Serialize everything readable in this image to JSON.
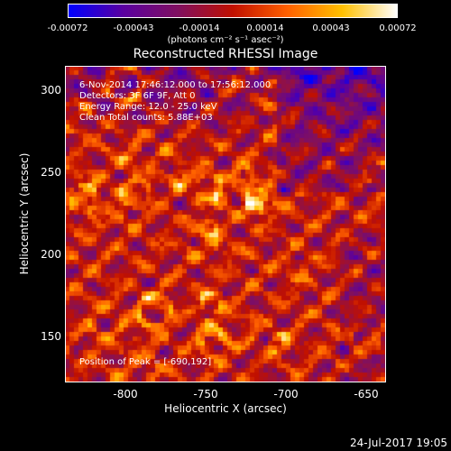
{
  "colorbar": {
    "ticks": [
      "-0.00072",
      "-0.00043",
      "-0.00014",
      "0.00014",
      "0.00043",
      "0.00072"
    ],
    "units": "(photons cm⁻² s⁻¹ asec⁻²)",
    "colormap": [
      "#0000ff",
      "#5a00a0",
      "#801060",
      "#c01000",
      "#ff6000",
      "#ffc000",
      "#ffffff"
    ]
  },
  "title": "Reconstructed RHESSI Image",
  "annotations": {
    "time_range": "6-Nov-2014 17:46:12.000 to 17:56:12.000",
    "detectors": "Detectors: 3F 6F 9F, Att 0",
    "energy": "Energy Range: 12.0 - 25.0 keV",
    "clean": "Clean    Total counts: 5.88E+03",
    "peak": "Position of Peak = [-690,192]"
  },
  "axes": {
    "xlabel": "Heliocentric X (arcsec)",
    "ylabel": "Heliocentric Y (arcsec)",
    "xticks": [
      "-800",
      "-750",
      "-700",
      "-650"
    ],
    "yticks": [
      "300",
      "250",
      "200",
      "150"
    ],
    "xrange": [
      -835,
      -635
    ],
    "yrange": [
      120,
      315
    ]
  },
  "timestamp": "24-Jul-2017 19:05"
}
